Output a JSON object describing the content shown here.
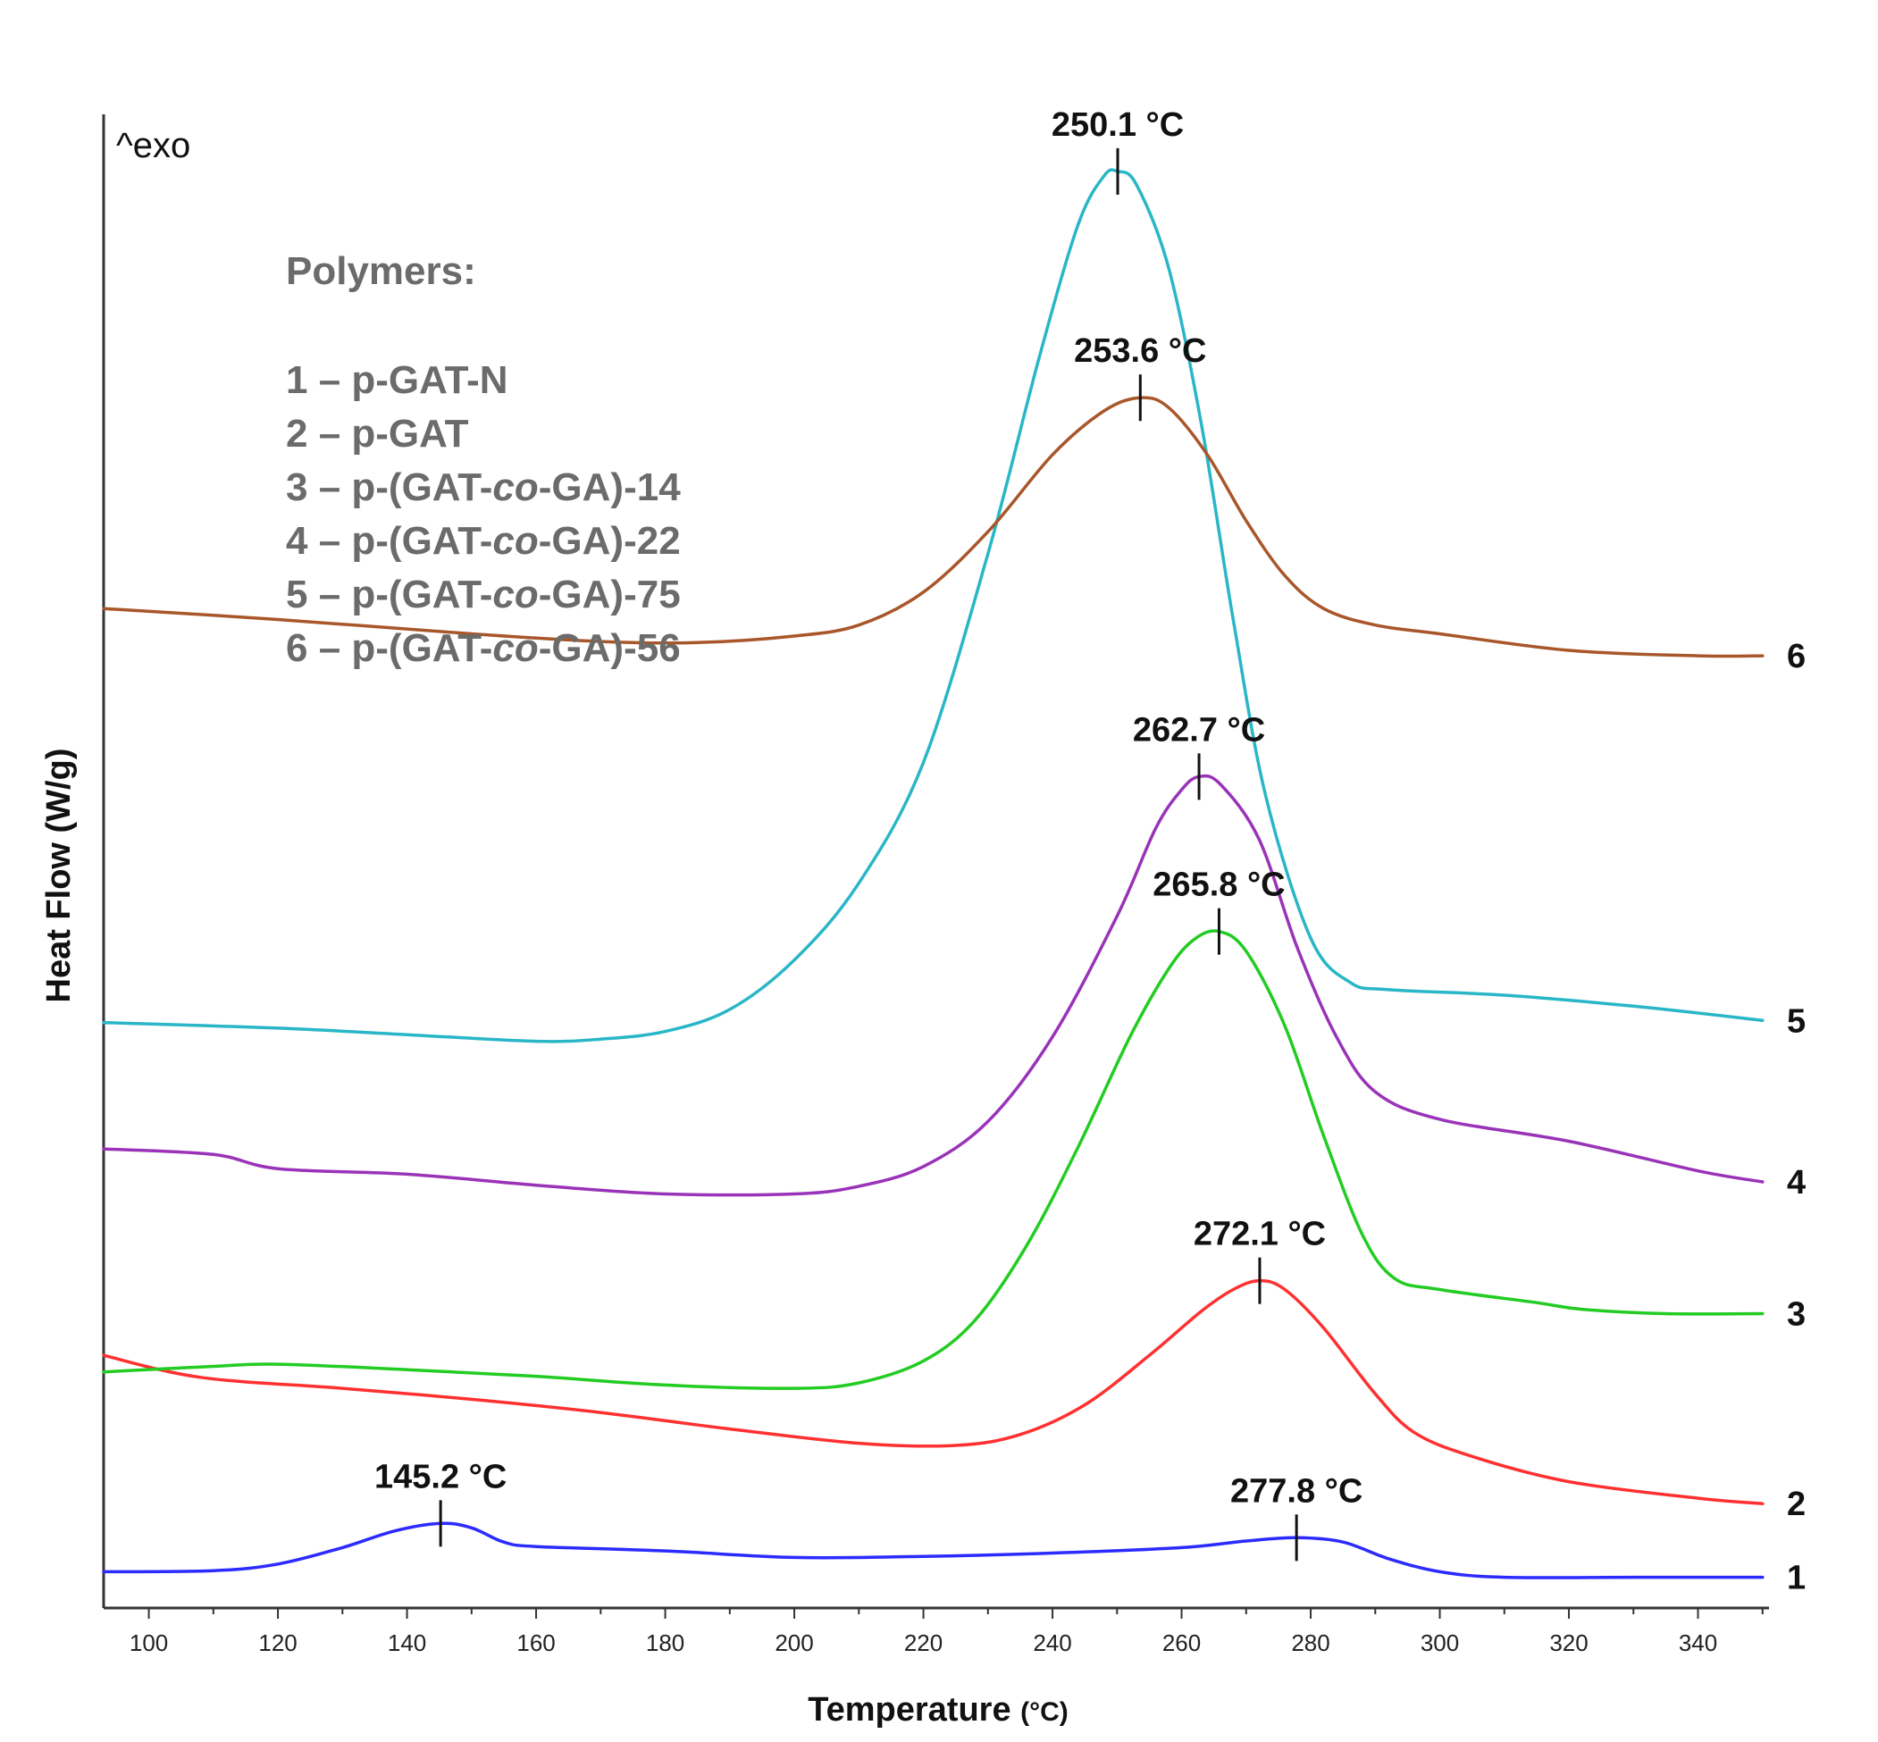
{
  "chart_data": {
    "type": "line",
    "title": "",
    "xlabel": "Temperature",
    "xlabel_unit": "(°C)",
    "ylabel": "Heat Flow (W/g)",
    "exo_label": "^exo",
    "xlim": [
      93,
      351
    ],
    "x_ticks": [
      100,
      120,
      140,
      160,
      180,
      200,
      220,
      240,
      260,
      280,
      300,
      320,
      340
    ],
    "grid": false,
    "legend": {
      "title": "Polymers:",
      "entries": [
        {
          "num": "1",
          "dash": "–",
          "pre": "p-GAT-N",
          "italic": "",
          "post": ""
        },
        {
          "num": "2",
          "dash": "–",
          "pre": "p-GAT",
          "italic": "",
          "post": ""
        },
        {
          "num": "3",
          "dash": "–",
          "pre": "p-(GAT-",
          "italic": "co",
          "post": "-GA)-14"
        },
        {
          "num": "4",
          "dash": "–",
          "pre": "p-(GAT-",
          "italic": "co",
          "post": "-GA)-22"
        },
        {
          "num": "5",
          "dash": "–",
          "pre": "p-(GAT-",
          "italic": "co",
          "post": "-GA)-75"
        },
        {
          "num": "6",
          "dash": "–",
          "pre": "p-(GAT-",
          "italic": "co",
          "post": "-GA)-56"
        }
      ]
    },
    "series": [
      {
        "name": "1",
        "color": "#2b2bff",
        "points": [
          [
            93,
            0.033
          ],
          [
            110,
            0.034
          ],
          [
            120,
            0.04
          ],
          [
            130,
            0.055
          ],
          [
            138,
            0.07
          ],
          [
            145.2,
            0.077
          ],
          [
            150,
            0.073
          ],
          [
            155,
            0.06
          ],
          [
            160,
            0.056
          ],
          [
            180,
            0.052
          ],
          [
            200,
            0.046
          ],
          [
            220,
            0.047
          ],
          [
            240,
            0.05
          ],
          [
            260,
            0.055
          ],
          [
            270,
            0.061
          ],
          [
            277.8,
            0.064
          ],
          [
            285,
            0.06
          ],
          [
            292,
            0.045
          ],
          [
            300,
            0.033
          ],
          [
            310,
            0.028
          ],
          [
            330,
            0.028
          ],
          [
            350,
            0.028
          ]
        ],
        "peaks": [
          {
            "x": 145.2,
            "label": "145.2 °C"
          },
          {
            "x": 277.8,
            "label": "277.8 °C"
          }
        ]
      },
      {
        "name": "2",
        "color": "#ff3030",
        "points": [
          [
            93,
            0.23
          ],
          [
            108,
            0.21
          ],
          [
            130,
            0.2
          ],
          [
            150,
            0.19
          ],
          [
            170,
            0.178
          ],
          [
            190,
            0.163
          ],
          [
            210,
            0.15
          ],
          [
            225,
            0.148
          ],
          [
            235,
            0.158
          ],
          [
            245,
            0.185
          ],
          [
            255,
            0.23
          ],
          [
            263,
            0.27
          ],
          [
            268,
            0.29
          ],
          [
            272.1,
            0.298
          ],
          [
            276,
            0.29
          ],
          [
            282,
            0.255
          ],
          [
            290,
            0.195
          ],
          [
            296,
            0.16
          ],
          [
            305,
            0.138
          ],
          [
            320,
            0.115
          ],
          [
            340,
            0.1
          ],
          [
            350,
            0.095
          ]
        ],
        "peaks": [
          {
            "x": 272.1,
            "label": "272.1 °C"
          }
        ]
      },
      {
        "name": "3",
        "color": "#22cc22",
        "points": [
          [
            93,
            0.215
          ],
          [
            110,
            0.22
          ],
          [
            120,
            0.222
          ],
          [
            140,
            0.217
          ],
          [
            160,
            0.211
          ],
          [
            180,
            0.203
          ],
          [
            200,
            0.2
          ],
          [
            210,
            0.205
          ],
          [
            220,
            0.225
          ],
          [
            228,
            0.262
          ],
          [
            236,
            0.33
          ],
          [
            244,
            0.42
          ],
          [
            252,
            0.52
          ],
          [
            258,
            0.582
          ],
          [
            262,
            0.609
          ],
          [
            265.8,
            0.616
          ],
          [
            270,
            0.598
          ],
          [
            276,
            0.53
          ],
          [
            282,
            0.43
          ],
          [
            288,
            0.34
          ],
          [
            293,
            0.3
          ],
          [
            300,
            0.29
          ],
          [
            315,
            0.278
          ],
          [
            322,
            0.272
          ],
          [
            335,
            0.268
          ],
          [
            350,
            0.268
          ]
        ],
        "peaks": [
          {
            "x": 265.8,
            "label": "265.8 °C"
          }
        ]
      },
      {
        "name": "4",
        "color": "#9933b8",
        "points": [
          [
            93,
            0.418
          ],
          [
            110,
            0.413
          ],
          [
            120,
            0.4
          ],
          [
            140,
            0.395
          ],
          [
            160,
            0.385
          ],
          [
            180,
            0.377
          ],
          [
            200,
            0.377
          ],
          [
            210,
            0.384
          ],
          [
            220,
            0.402
          ],
          [
            230,
            0.443
          ],
          [
            240,
            0.52
          ],
          [
            250,
            0.63
          ],
          [
            256,
            0.71
          ],
          [
            260,
            0.745
          ],
          [
            262.7,
            0.757
          ],
          [
            266,
            0.75
          ],
          [
            272,
            0.7
          ],
          [
            278,
            0.6
          ],
          [
            284,
            0.52
          ],
          [
            290,
            0.47
          ],
          [
            300,
            0.445
          ],
          [
            320,
            0.425
          ],
          [
            340,
            0.398
          ],
          [
            350,
            0.388
          ]
        ],
        "peaks": [
          {
            "x": 262.7,
            "label": "262.7 °C"
          }
        ]
      },
      {
        "name": "5",
        "color": "#29b6c6",
        "points": [
          [
            93,
            0.533
          ],
          [
            120,
            0.528
          ],
          [
            140,
            0.522
          ],
          [
            160,
            0.516
          ],
          [
            170,
            0.518
          ],
          [
            180,
            0.525
          ],
          [
            190,
            0.545
          ],
          [
            200,
            0.59
          ],
          [
            210,
            0.66
          ],
          [
            220,
            0.77
          ],
          [
            230,
            0.96
          ],
          [
            238,
            1.14
          ],
          [
            244,
            1.26
          ],
          [
            248,
            1.304
          ],
          [
            250.1,
            1.308
          ],
          [
            253,
            1.296
          ],
          [
            258,
            1.22
          ],
          [
            263,
            1.08
          ],
          [
            268,
            0.9
          ],
          [
            273,
            0.74
          ],
          [
            280,
            0.61
          ],
          [
            286,
            0.57
          ],
          [
            292,
            0.563
          ],
          [
            310,
            0.558
          ],
          [
            330,
            0.548
          ],
          [
            350,
            0.535
          ]
        ],
        "peaks": [
          {
            "x": 250.1,
            "label": "250.1 °C"
          }
        ]
      },
      {
        "name": "6",
        "color": "#a8562a",
        "points": [
          [
            93,
            0.91
          ],
          [
            120,
            0.9
          ],
          [
            150,
            0.887
          ],
          [
            170,
            0.88
          ],
          [
            185,
            0.879
          ],
          [
            200,
            0.885
          ],
          [
            210,
            0.895
          ],
          [
            220,
            0.925
          ],
          [
            230,
            0.98
          ],
          [
            240,
            1.05
          ],
          [
            248,
            1.09
          ],
          [
            253.6,
            1.102
          ],
          [
            258,
            1.093
          ],
          [
            264,
            1.05
          ],
          [
            270,
            0.99
          ],
          [
            276,
            0.94
          ],
          [
            282,
            0.91
          ],
          [
            290,
            0.895
          ],
          [
            300,
            0.887
          ],
          [
            320,
            0.872
          ],
          [
            340,
            0.867
          ],
          [
            350,
            0.867
          ]
        ],
        "peaks": [
          {
            "x": 253.6,
            "label": "253.6 °C"
          }
        ]
      }
    ]
  }
}
